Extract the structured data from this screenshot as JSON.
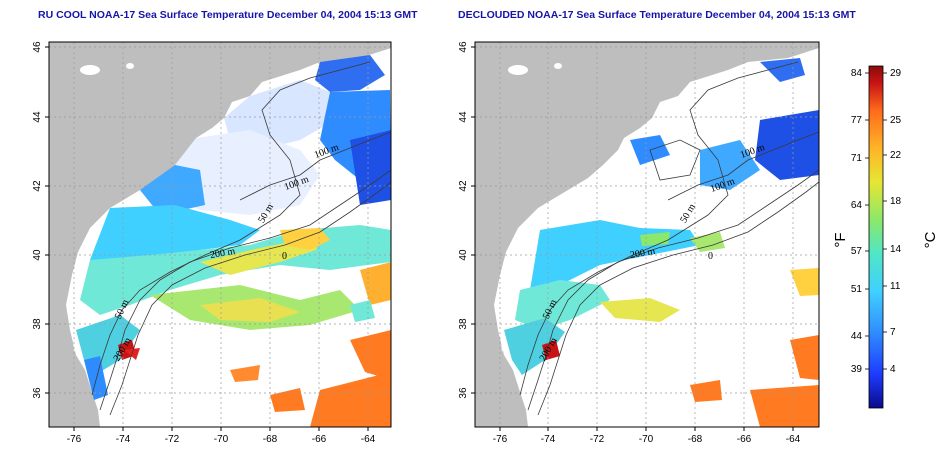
{
  "left_panel": {
    "title": "RU COOL NOAA-17 Sea Surface Temperature December 04, 2004 15:13 GMT",
    "contour_labels": [
      "100 m",
      "100 m",
      "50 m",
      "200 m",
      "50 m",
      "200 m",
      "0"
    ]
  },
  "right_panel": {
    "title": "DECLOUDED NOAA-17 Sea Surface Temperature December 04, 2004 15:13 GMT",
    "contour_labels": [
      "100 m",
      "100 m",
      "50 m",
      "200 m",
      "50 m",
      "200 m",
      "0"
    ]
  },
  "axes": {
    "x_ticks": [
      "-76",
      "-74",
      "-72",
      "-70",
      "-68",
      "-66",
      "-64"
    ],
    "y_ticks": [
      "46",
      "44",
      "42",
      "40",
      "38",
      "36"
    ]
  },
  "colorbar": {
    "fahrenheit_ticks": [
      "84",
      "77",
      "71",
      "64",
      "57",
      "51",
      "44",
      "39"
    ],
    "celsius_ticks": [
      "29",
      "25",
      "22",
      "18",
      "14",
      "11",
      "7",
      "4"
    ],
    "unit_f": "°F",
    "unit_c": "°C",
    "colors": [
      "#0a0a8c",
      "#1e3cff",
      "#2f8cff",
      "#3fd0ff",
      "#4fe6c8",
      "#8be86a",
      "#e6e632",
      "#ffb428",
      "#ff6a1a",
      "#c81414",
      "#8c0a0a"
    ]
  },
  "colors": {
    "land": "#bebebe",
    "ocean_no_data": "#ffffff",
    "cold": "#2f6ef0",
    "title_text": "#1515a8"
  }
}
